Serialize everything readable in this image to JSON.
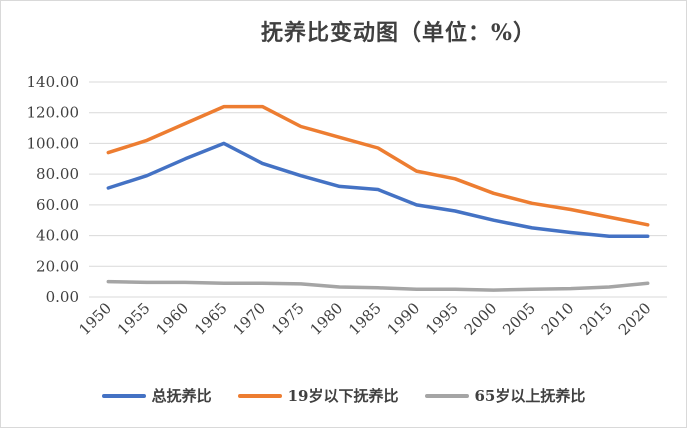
{
  "chart_data": {
    "type": "line",
    "title": "抚养比变动图（单位：%）",
    "categories": [
      "1950",
      "1955",
      "1960",
      "1965",
      "1970",
      "1975",
      "1980",
      "1985",
      "1990",
      "1995",
      "2000",
      "2005",
      "2010",
      "2015",
      "2020"
    ],
    "ylim": [
      0,
      140
    ],
    "yticks": [
      "0.00",
      "20.00",
      "40.00",
      "60.00",
      "80.00",
      "100.00",
      "120.00",
      "140.00"
    ],
    "grid": true,
    "legend_position": "bottom",
    "series": [
      {
        "name": "总抚养比",
        "color": "#4472c4",
        "values": [
          71,
          79,
          90,
          100,
          87,
          79,
          72,
          70,
          60,
          56,
          50,
          45,
          42,
          39.5,
          39.5
        ]
      },
      {
        "name": "19岁以下抚养比",
        "color": "#ed7d31",
        "values": [
          94,
          102,
          113,
          124,
          124,
          111,
          104,
          97,
          82,
          77,
          67.5,
          61,
          57,
          52,
          47
        ]
      },
      {
        "name": "65岁以上抚养比",
        "color": "#a5a5a5",
        "values": [
          10,
          9.5,
          9.5,
          9,
          9,
          8.5,
          6.5,
          6,
          5,
          5,
          4.5,
          5,
          5.5,
          6.5,
          9
        ]
      }
    ]
  }
}
